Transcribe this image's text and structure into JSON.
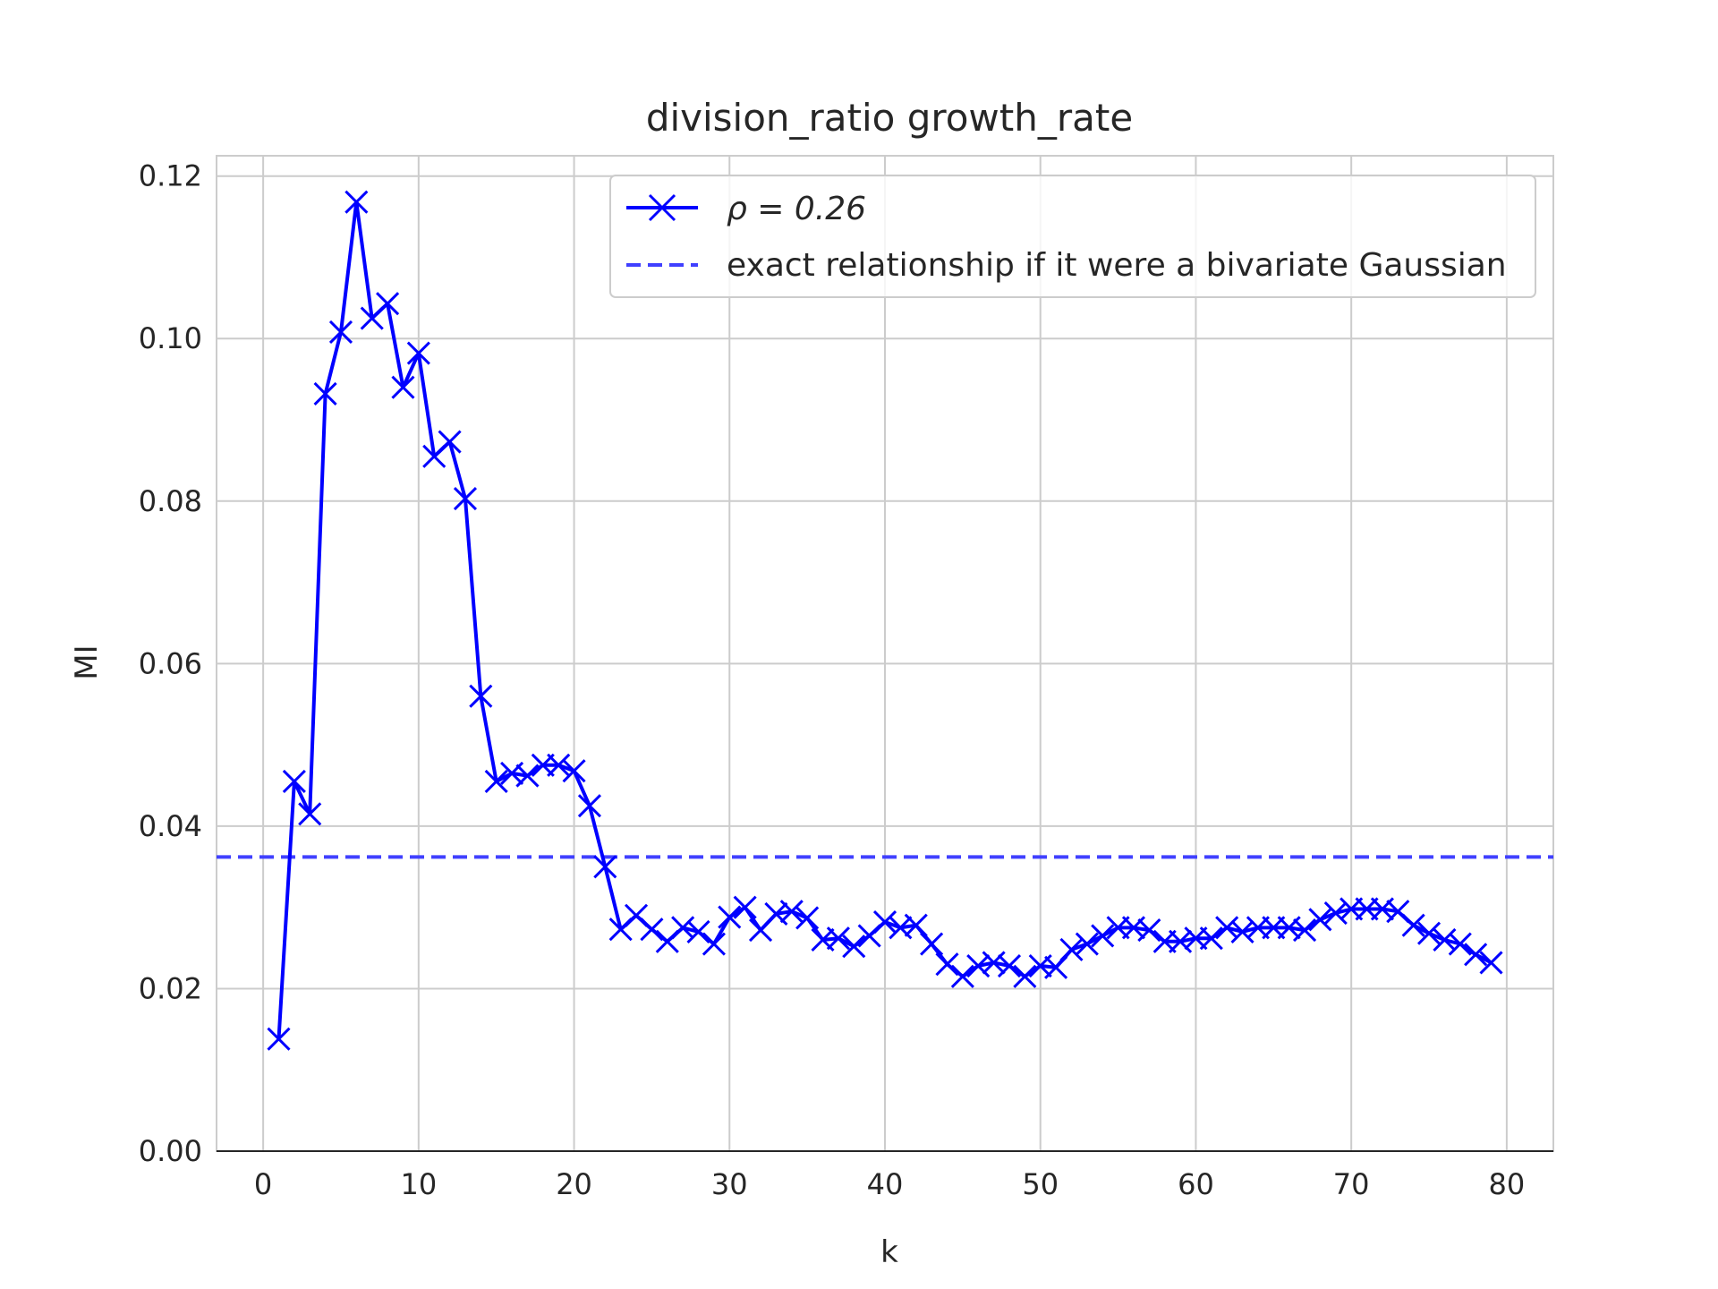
{
  "chart_data": {
    "type": "line",
    "title": "division_ratio growth_rate",
    "xlabel": "k",
    "ylabel": "MI",
    "xlim": [
      -3,
      83
    ],
    "ylim": [
      0,
      0.1225
    ],
    "xticks": [
      0,
      10,
      20,
      30,
      40,
      50,
      60,
      70,
      80
    ],
    "xtick_labels": [
      "0",
      "10",
      "20",
      "30",
      "40",
      "50",
      "60",
      "70",
      "80"
    ],
    "yticks": [
      0,
      0.02,
      0.04,
      0.06,
      0.08,
      0.1,
      0.12
    ],
    "ytick_labels": [
      "0.00",
      "0.02",
      "0.04",
      "0.06",
      "0.08",
      "0.10",
      "0.12"
    ],
    "grid": true,
    "legend_position": "top-right",
    "series": [
      {
        "name": "ρ = 0.26",
        "color": "#0000ff",
        "marker": "x",
        "x": [
          1,
          2,
          3,
          4,
          5,
          6,
          7,
          8,
          9,
          10,
          11,
          12,
          13,
          14,
          15,
          16,
          17,
          18,
          19,
          20,
          21,
          22,
          23,
          24,
          25,
          26,
          27,
          28,
          29,
          30,
          31,
          32,
          33,
          34,
          35,
          36,
          37,
          38,
          39,
          40,
          41,
          42,
          43,
          44,
          45,
          46,
          47,
          48,
          49,
          50,
          51,
          52,
          53,
          54,
          55,
          56,
          57,
          58,
          59,
          60,
          61,
          62,
          63,
          64,
          65,
          66,
          67,
          68,
          69,
          70,
          71,
          72,
          73,
          74,
          75,
          76,
          77,
          78,
          79
        ],
        "y": [
          0.0138,
          0.0455,
          0.0415,
          0.0932,
          0.1008,
          0.1168,
          0.1025,
          0.1043,
          0.094,
          0.0982,
          0.0855,
          0.0873,
          0.0803,
          0.056,
          0.0455,
          0.0465,
          0.0462,
          0.0475,
          0.0475,
          0.0468,
          0.0425,
          0.035,
          0.0273,
          0.029,
          0.0273,
          0.0258,
          0.0275,
          0.027,
          0.0255,
          0.0288,
          0.03,
          0.0272,
          0.0292,
          0.0295,
          0.0287,
          0.026,
          0.0262,
          0.0252,
          0.0265,
          0.0282,
          0.0275,
          0.0278,
          0.0255,
          0.023,
          0.0215,
          0.0228,
          0.0232,
          0.0228,
          0.0215,
          0.0228,
          0.0226,
          0.0248,
          0.0255,
          0.0265,
          0.0275,
          0.0275,
          0.0272,
          0.0258,
          0.0258,
          0.0262,
          0.0262,
          0.0275,
          0.027,
          0.0275,
          0.0275,
          0.0275,
          0.0272,
          0.0285,
          0.0293,
          0.0298,
          0.0298,
          0.0298,
          0.0295,
          0.0278,
          0.0268,
          0.026,
          0.0255,
          0.0242,
          0.0232
        ]
      },
      {
        "name": "exact relationship if it were a bivariate Gaussian",
        "color": "#4040ff",
        "style": "dashed",
        "y_constant": 0.0362
      }
    ]
  }
}
